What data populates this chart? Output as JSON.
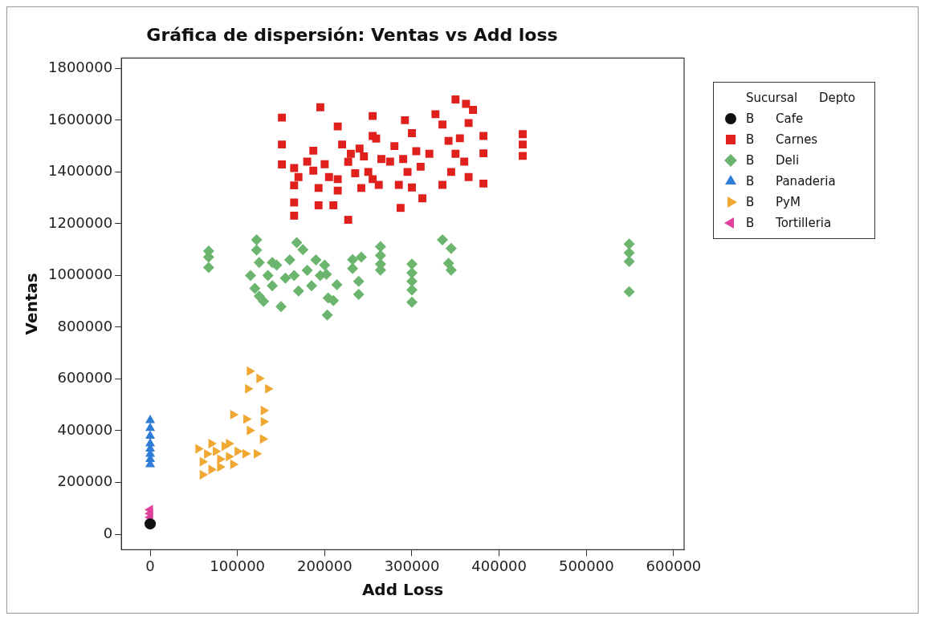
{
  "chart_data": {
    "type": "scatter",
    "title": "Gráfica de dispersión: Ventas vs Add loss",
    "xlabel": "Add Loss",
    "ylabel": "Ventas",
    "legend_title": "Sucursal Depto",
    "legend": "right",
    "grid": false,
    "xlim": [
      -33000,
      612000
    ],
    "xticks": [
      0,
      100000,
      200000,
      300000,
      400000,
      500000,
      600000
    ],
    "ylim": [
      -60000,
      1840000
    ],
    "yticks": [
      0,
      200000,
      400000,
      600000,
      800000,
      1000000,
      1200000,
      1400000,
      1600000,
      1800000
    ],
    "series": [
      {
        "name": "B Cafe",
        "color": "#111111",
        "marker": "circle",
        "x": [
          0
        ],
        "values": [
          40000
        ]
      },
      {
        "name": "B Carnes",
        "color": "#e0201c",
        "marker": "square",
        "x": [
          151000,
          195000,
          215000,
          255000,
          151000,
          151000,
          165000,
          165000,
          165000,
          165000,
          187000,
          187000,
          193000,
          193000,
          210000,
          227000,
          220000,
          227000,
          215000,
          215000,
          235000,
          242000,
          255000,
          255000,
          259000,
          292000,
          327000,
          350000,
          362000,
          370000,
          365000,
          335000,
          382000,
          382000,
          382000,
          312000,
          287000,
          427000,
          427000,
          427000,
          280000,
          290000,
          300000,
          305000,
          295000,
          285000,
          310000,
          320000,
          300000,
          275000,
          342000,
          350000,
          345000,
          360000,
          365000,
          355000,
          335000,
          245000,
          250000,
          262000,
          265000,
          230000,
          240000,
          200000,
          205000,
          180000,
          170000
        ],
        "values": [
          1610000,
          1650000,
          1576000,
          1616000,
          1506000,
          1429000,
          1415000,
          1348000,
          1282000,
          1231000,
          1482000,
          1405000,
          1338000,
          1271000,
          1271000,
          1215000,
          1506000,
          1439000,
          1372000,
          1328000,
          1395000,
          1338000,
          1539000,
          1372000,
          1529000,
          1600000,
          1623000,
          1680000,
          1663000,
          1640000,
          1589000,
          1583000,
          1539000,
          1472000,
          1355000,
          1298000,
          1261000,
          1546000,
          1506000,
          1462000,
          1500000,
          1450000,
          1550000,
          1480000,
          1400000,
          1350000,
          1420000,
          1470000,
          1340000,
          1440000,
          1520000,
          1470000,
          1400000,
          1440000,
          1380000,
          1530000,
          1350000,
          1460000,
          1400000,
          1350000,
          1450000,
          1470000,
          1490000,
          1430000,
          1380000,
          1440000,
          1380000
        ]
      },
      {
        "name": "B Deli",
        "color": "#6cb56e",
        "marker": "diamond",
        "x": [
          67000,
          67000,
          67000,
          122000,
          122000,
          115000,
          120000,
          125000,
          130000,
          135000,
          140000,
          145000,
          150000,
          155000,
          160000,
          165000,
          170000,
          175000,
          180000,
          185000,
          190000,
          195000,
          200000,
          140000,
          125000,
          168000,
          202000,
          214000,
          204000,
          210000,
          203000,
          232000,
          242000,
          232000,
          239000,
          239000,
          264000,
          264000,
          264000,
          264000,
          300000,
          300000,
          300000,
          300000,
          300000,
          335000,
          345000,
          342000,
          345000,
          549000,
          549000,
          549000,
          549000
        ],
        "values": [
          1094000,
          1071000,
          1031000,
          1138000,
          1098000,
          1000000,
          950000,
          1050000,
          900000,
          1000000,
          960000,
          1040000,
          880000,
          990000,
          1060000,
          1000000,
          940000,
          1100000,
          1020000,
          960000,
          1060000,
          1000000,
          1040000,
          1050000,
          920000,
          1127000,
          1004000,
          964000,
          913000,
          903000,
          847000,
          1061000,
          1071000,
          1027000,
          977000,
          927000,
          1111000,
          1077000,
          1044000,
          1021000,
          1044000,
          1010000,
          977000,
          944000,
          897000,
          1138000,
          1104000,
          1047000,
          1021000,
          1121000,
          1087000,
          1054000,
          937000
        ]
      },
      {
        "name": "B Panaderia",
        "color": "#2f7dd6",
        "marker": "triangle",
        "x": [
          0,
          0,
          0,
          0,
          0,
          0,
          0,
          0
        ],
        "values": [
          440000,
          410000,
          380000,
          350000,
          330000,
          310000,
          290000,
          270000
        ]
      },
      {
        "name": "B PyM",
        "color": "#f0a832",
        "marker": "triangle-right",
        "x": [
          114000,
          125000,
          135000,
          112000,
          130000,
          95000,
          110000,
          130000,
          129000,
          114000,
          122000,
          109000,
          55000,
          60000,
          65000,
          70000,
          75000,
          80000,
          85000,
          90000,
          95000,
          100000,
          60000,
          70000,
          80000,
          90000
        ],
        "values": [
          630000,
          602000,
          562000,
          562000,
          478000,
          462000,
          445000,
          435000,
          368000,
          401000,
          311000,
          311000,
          330000,
          280000,
          310000,
          250000,
          320000,
          290000,
          340000,
          300000,
          270000,
          320000,
          230000,
          350000,
          260000,
          350000
        ]
      },
      {
        "name": "B Tortilleria",
        "color": "#e0409c",
        "marker": "triangle-left",
        "x": [
          0,
          0,
          0
        ],
        "values": [
          95000,
          80000,
          65000
        ]
      }
    ]
  }
}
